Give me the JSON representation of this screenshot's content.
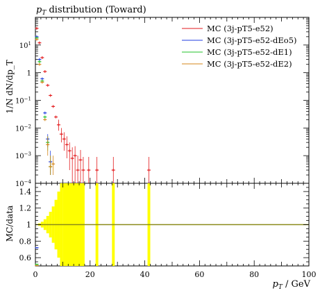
{
  "chart_data": [
    {
      "type": "scatter",
      "title_italic": "p",
      "title_sub": "T",
      "title_rest": " distribution (Toward)",
      "ylabel": "1/N dN/dp_T",
      "yscale": "log",
      "ylim": [
        0.0001,
        100
      ],
      "xlim": [
        0,
        100
      ],
      "yticks": [
        {
          "v": 0.0001,
          "m": "10",
          "e": "−4"
        },
        {
          "v": 0.001,
          "m": "10",
          "e": "−3"
        },
        {
          "v": 0.01,
          "m": "10",
          "e": "−2"
        },
        {
          "v": 0.1,
          "m": "10",
          "e": "−1"
        },
        {
          "v": 1,
          "m": "1",
          "e": ""
        },
        {
          "v": 10,
          "m": "10",
          "e": "1"
        }
      ],
      "legend_position": "top-right",
      "series": [
        {
          "name": "MC (3j-pT5-e52)",
          "color": "#e31a1c",
          "points": [
            {
              "x": 0.5,
              "y": 40
            },
            {
              "x": 1.5,
              "y": 12
            },
            {
              "x": 2.5,
              "y": 3.5
            },
            {
              "x": 3.5,
              "y": 1.1
            },
            {
              "x": 4.5,
              "y": 0.35
            },
            {
              "x": 5.5,
              "y": 0.15
            },
            {
              "x": 6.5,
              "y": 0.06
            },
            {
              "x": 7.5,
              "y": 0.025
            },
            {
              "x": 8.5,
              "y": 0.013,
              "lo": 0.008,
              "hi": 0.02
            },
            {
              "x": 9.5,
              "y": 0.006,
              "lo": 0.003,
              "hi": 0.01
            },
            {
              "x": 10.5,
              "y": 0.004,
              "lo": 0.0015,
              "hi": 0.007
            },
            {
              "x": 11.5,
              "y": 0.0025,
              "lo": 0.0008,
              "hi": 0.005
            },
            {
              "x": 12.5,
              "y": 0.0015,
              "lo": 0.0003,
              "hi": 0.003
            },
            {
              "x": 13.5,
              "y": 0.0008,
              "lo": 0.0001,
              "hi": 0.002
            },
            {
              "x": 14.5,
              "y": 0.001,
              "lo": 0.0001,
              "hi": 0.0022
            },
            {
              "x": 15.5,
              "y": 0.0003,
              "lo": 0.0001,
              "hi": 0.001
            },
            {
              "x": 16.5,
              "y": 0.0007,
              "lo": 0.0001,
              "hi": 0.0016
            },
            {
              "x": 17.5,
              "y": 0.0003,
              "lo": 0.0001,
              "hi": 0.0009
            },
            {
              "x": 19.5,
              "y": 0.0003,
              "lo": 0.0001,
              "hi": 0.0009
            },
            {
              "x": 22.5,
              "y": 0.0003,
              "lo": 0.0001,
              "hi": 0.0009
            },
            {
              "x": 28.5,
              "y": 0.0003,
              "lo": 0.0001,
              "hi": 0.0009
            },
            {
              "x": 41.5,
              "y": 0.0003,
              "lo": 0.0001,
              "hi": 0.0009
            }
          ]
        },
        {
          "name": "MC (3j-pT5-e52-dEo5)",
          "color": "#1f3de0",
          "points": [
            {
              "x": 0.5,
              "y": 20
            },
            {
              "x": 1.5,
              "y": 3
            },
            {
              "x": 2.5,
              "y": 0.6
            },
            {
              "x": 3.5,
              "y": 0.035
            },
            {
              "x": 4.5,
              "y": 0.004,
              "lo": 0.002,
              "hi": 0.006
            },
            {
              "x": 5.5,
              "y": 0.0006,
              "lo": 0.0002,
              "hi": 0.0015
            }
          ]
        },
        {
          "name": "MC (3j-pT5-e52-dE1)",
          "color": "#22c32a",
          "points": [
            {
              "x": 0.5,
              "y": 18
            },
            {
              "x": 1.5,
              "y": 2.5
            },
            {
              "x": 2.5,
              "y": 0.5
            },
            {
              "x": 3.5,
              "y": 0.025
            },
            {
              "x": 4.5,
              "y": 0.003,
              "lo": 0.0015,
              "hi": 0.005
            },
            {
              "x": 5.5,
              "y": 0.0004,
              "lo": 0.0002,
              "hi": 0.001
            }
          ]
        },
        {
          "name": "MC (3j-pT5-e52-dE2)",
          "color": "#d4851a",
          "points": [
            {
              "x": 0.5,
              "y": 16
            },
            {
              "x": 1.5,
              "y": 2
            },
            {
              "x": 2.5,
              "y": 0.45
            },
            {
              "x": 3.5,
              "y": 0.02
            },
            {
              "x": 4.5,
              "y": 0.0025,
              "lo": 0.001,
              "hi": 0.005
            },
            {
              "x": 5.5,
              "y": 0.0004,
              "lo": 0.0002,
              "hi": 0.001
            },
            {
              "x": 6.5,
              "y": 0.0005,
              "lo": 0.0002,
              "hi": 0.001
            }
          ]
        }
      ]
    },
    {
      "type": "line",
      "ylabel": "MC/data",
      "xlabel_italic": "p",
      "xlabel_sub": "T",
      "xlabel_rest": " / GeV",
      "xlim": [
        0,
        100
      ],
      "ylim": [
        0.5,
        1.5
      ],
      "yticks": [
        0.6,
        0.8,
        1,
        1.2,
        1.4
      ],
      "xticks": [
        0,
        20,
        40,
        60,
        80,
        100
      ],
      "band_color": "#ffff00",
      "line_color": "#8a8a1a",
      "band": [
        {
          "x0": 0,
          "x1": 1,
          "lo": 0.998,
          "hi": 1.002
        },
        {
          "x0": 1,
          "x1": 2,
          "lo": 0.985,
          "hi": 1.015
        },
        {
          "x0": 2,
          "x1": 3,
          "lo": 0.965,
          "hi": 1.035
        },
        {
          "x0": 3,
          "x1": 4,
          "lo": 0.935,
          "hi": 1.065
        },
        {
          "x0": 4,
          "x1": 5,
          "lo": 0.895,
          "hi": 1.105
        },
        {
          "x0": 5,
          "x1": 6,
          "lo": 0.845,
          "hi": 1.155
        },
        {
          "x0": 6,
          "x1": 7,
          "lo": 0.78,
          "hi": 1.22
        },
        {
          "x0": 7,
          "x1": 8,
          "lo": 0.7,
          "hi": 1.3
        },
        {
          "x0": 8,
          "x1": 9,
          "lo": 0.6,
          "hi": 1.4
        },
        {
          "x0": 9,
          "x1": 10,
          "lo": 0.5,
          "hi": 1.5
        },
        {
          "x0": 10,
          "x1": 18,
          "lo": 0.5,
          "hi": 1.5
        },
        {
          "x0": 22,
          "x1": 23,
          "lo": 0.5,
          "hi": 1.5
        },
        {
          "x0": 28,
          "x1": 29,
          "lo": 0.5,
          "hi": 1.5
        },
        {
          "x0": 41,
          "x1": 42,
          "lo": 0.5,
          "hi": 1.5
        }
      ],
      "markers": [
        {
          "x": 0.5,
          "y": 0.72,
          "color": "#1f3de0"
        },
        {
          "x": 0.5,
          "y": 0.52,
          "color": "#22c32a"
        },
        {
          "x": 0.5,
          "y": 0.505,
          "color": "#d4851a"
        }
      ]
    }
  ]
}
